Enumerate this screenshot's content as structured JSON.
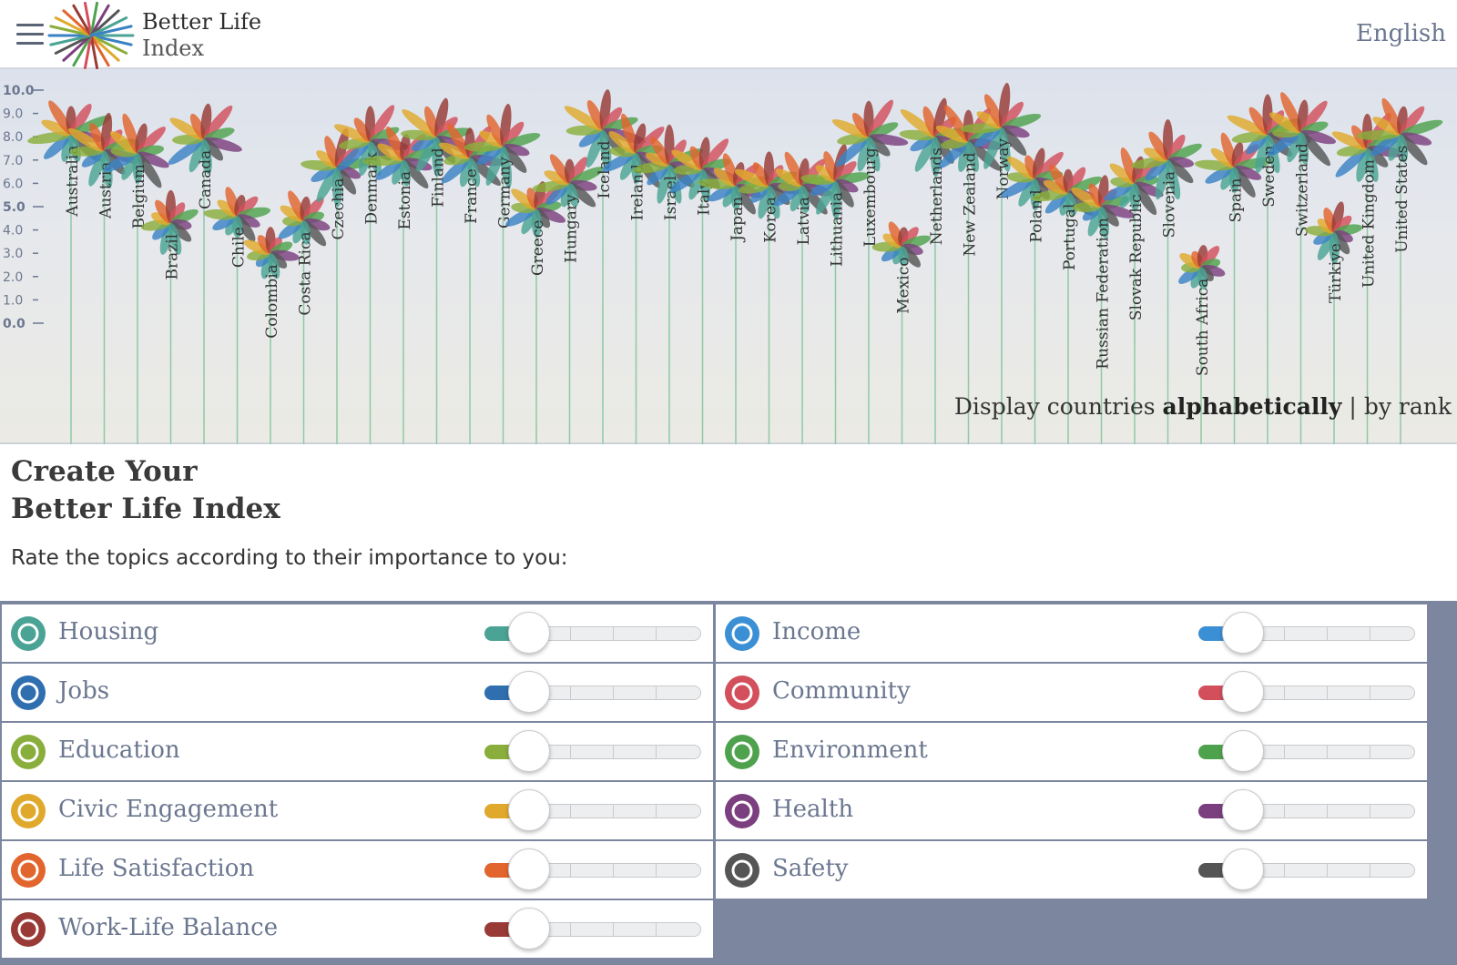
{
  "header": {
    "logo_line1": "Better Life",
    "logo_line2": "Index",
    "language": "English",
    "menu_icon": "hamburger-menu-icon",
    "logo_icon": "colorful-flower-logo-icon"
  },
  "chart_data": {
    "type": "flower-chart",
    "y_ticks": [
      "10.0",
      "9.0",
      "8.0",
      "7.0",
      "6.0",
      "5.0",
      "4.0",
      "3.0",
      "2.0",
      "1.0",
      "0.0"
    ],
    "ylim": [
      0,
      10
    ],
    "petal_colors": [
      "#4aa394",
      "#3b82c4",
      "#8aae3c",
      "#e0a92c",
      "#e2652e",
      "#993a36",
      "#d24f5b",
      "#4ea24d",
      "#7b3f7f",
      "#555555"
    ],
    "countries": [
      {
        "name": "Australia",
        "value": 8.1
      },
      {
        "name": "Austria",
        "value": 7.4
      },
      {
        "name": "Belgium",
        "value": 7.3
      },
      {
        "name": "Brazil",
        "value": 4.3
      },
      {
        "name": "Canada",
        "value": 7.9
      },
      {
        "name": "Chile",
        "value": 4.6
      },
      {
        "name": "Colombia",
        "value": 3.0
      },
      {
        "name": "Costa Rica",
        "value": 4.4
      },
      {
        "name": "Czechia",
        "value": 6.7
      },
      {
        "name": "Denmark",
        "value": 7.8
      },
      {
        "name": "Estonia",
        "value": 7.0
      },
      {
        "name": "Finland",
        "value": 8.0
      },
      {
        "name": "France",
        "value": 7.1
      },
      {
        "name": "Germany",
        "value": 7.6
      },
      {
        "name": "Greece",
        "value": 4.9
      },
      {
        "name": "Hungary",
        "value": 6.0
      },
      {
        "name": "Iceland",
        "value": 8.3
      },
      {
        "name": "Ireland",
        "value": 7.3
      },
      {
        "name": "Israel",
        "value": 6.8
      },
      {
        "name": "Italy",
        "value": 6.6
      },
      {
        "name": "Japan",
        "value": 5.9
      },
      {
        "name": "Korea",
        "value": 5.9
      },
      {
        "name": "Latvia",
        "value": 5.9
      },
      {
        "name": "Lithuania",
        "value": 6.1
      },
      {
        "name": "Luxembourg",
        "value": 8.0
      },
      {
        "name": "Mexico",
        "value": 3.3
      },
      {
        "name": "Netherlands",
        "value": 8.0
      },
      {
        "name": "New Zealand",
        "value": 7.8
      },
      {
        "name": "Norway",
        "value": 8.4
      },
      {
        "name": "Poland",
        "value": 6.2
      },
      {
        "name": "Portugal",
        "value": 5.6
      },
      {
        "name": "Russian Federation",
        "value": 5.0
      },
      {
        "name": "Slovak Republic",
        "value": 6.0
      },
      {
        "name": "Slovenia",
        "value": 7.0
      },
      {
        "name": "South Africa",
        "value": 2.4
      },
      {
        "name": "Spain",
        "value": 6.7
      },
      {
        "name": "Sweden",
        "value": 8.1
      },
      {
        "name": "Switzerland",
        "value": 8.2
      },
      {
        "name": "Türkiye",
        "value": 3.9
      },
      {
        "name": "United Kingdom",
        "value": 7.5
      },
      {
        "name": "United States",
        "value": 8.1
      }
    ],
    "display_prefix": "Display countries",
    "display_alpha": "alphabetically",
    "display_sep": "|",
    "display_rank": "by rank"
  },
  "create": {
    "title_line1": "Create Your",
    "title_line2": "Better Life Index",
    "rate_text": "Rate the topics according to their importance to you:"
  },
  "topics": [
    {
      "label": "Housing",
      "color": "#4aa394",
      "icon": "house-icon",
      "level": 0.1
    },
    {
      "label": "Income",
      "color": "#3b8fd4",
      "icon": "money-icon",
      "level": 0.1
    },
    {
      "label": "Jobs",
      "color": "#2f6fb0",
      "icon": "briefcase-icon",
      "level": 0.1
    },
    {
      "label": "Community",
      "color": "#d24f5b",
      "icon": "people-icon",
      "level": 0.1
    },
    {
      "label": "Education",
      "color": "#8aae3c",
      "icon": "book-icon",
      "level": 0.1
    },
    {
      "label": "Environment",
      "color": "#4ea24d",
      "icon": "tree-icon",
      "level": 0.1
    },
    {
      "label": "Civic Engagement",
      "color": "#e0a92c",
      "icon": "ballot-icon",
      "level": 0.1
    },
    {
      "label": "Health",
      "color": "#7b3f7f",
      "icon": "medical-cross-icon",
      "level": 0.1
    },
    {
      "label": "Life Satisfaction",
      "color": "#e2652e",
      "icon": "heart-icon",
      "level": 0.1
    },
    {
      "label": "Safety",
      "color": "#555555",
      "icon": "running-person-icon",
      "level": 0.1
    },
    {
      "label": "Work-Life Balance",
      "color": "#993a36",
      "icon": "scales-icon",
      "level": 0.1
    }
  ]
}
